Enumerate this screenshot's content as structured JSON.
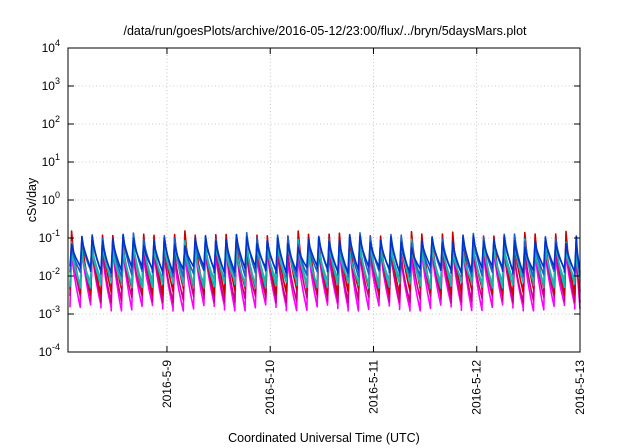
{
  "chart_data": {
    "type": "line",
    "title": "/data/run/goesPlots/archive/2016-05-12/23:00/flux/../bryn/5daysMars.plot",
    "xlabel": "Coordinated Universal Time (UTC)",
    "ylabel": "cSv/day",
    "y_scale": "log",
    "ylim": [
      0.0001,
      10000
    ],
    "y_ticks": [
      {
        "base": "10",
        "exp": "-4"
      },
      {
        "base": "10",
        "exp": "-3"
      },
      {
        "base": "10",
        "exp": "-2"
      },
      {
        "base": "10",
        "exp": "-1"
      },
      {
        "base": "10",
        "exp": "0"
      },
      {
        "base": "10",
        "exp": "1"
      },
      {
        "base": "10",
        "exp": "2"
      },
      {
        "base": "10",
        "exp": "3"
      },
      {
        "base": "10",
        "exp": "4"
      }
    ],
    "xlim": [
      "2016-05-08 01:00",
      "2016-05-13 00:00"
    ],
    "x_ticks": [
      "2016-5-9",
      "2016-5-10",
      "2016-5-11",
      "2016-5-12",
      "2016-5-13"
    ],
    "grid": true,
    "pattern": "sawtooth, period about 2 hours, sharp rise then decay",
    "series": [
      {
        "color": "#ff00ff",
        "peak": 0.05,
        "trough": 0.0015
      },
      {
        "color": "#cc0080",
        "peak": 0.06,
        "trough": 0.0025
      },
      {
        "color": "#cc0000",
        "peak": 0.11,
        "trough": 0.004
      },
      {
        "color": "#00bfbf",
        "peak": 0.07,
        "trough": 0.006
      },
      {
        "color": "#20b2aa",
        "peak": 0.06,
        "trough": 0.007
      },
      {
        "color": "#1e5fd0",
        "peak": 0.1,
        "trough": 0.012
      },
      {
        "color": "#0033cc",
        "peak": 0.09,
        "trough": 0.015
      }
    ]
  }
}
